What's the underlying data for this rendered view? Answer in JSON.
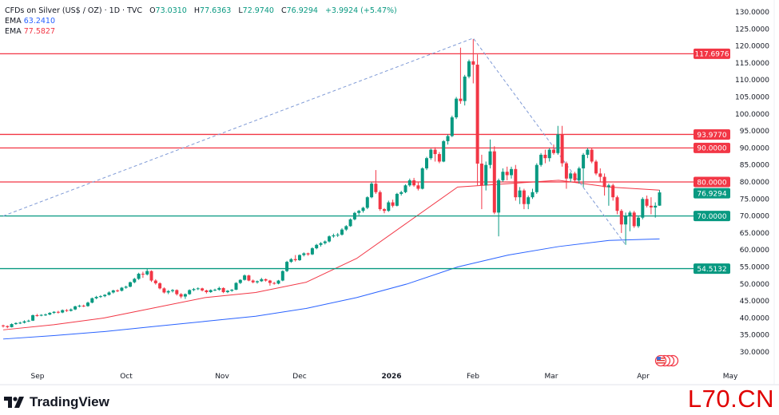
{
  "legend": {
    "symbol": "CFDs on Silver (US$ / OZ) · 1D · TVC",
    "o_label": "O",
    "o": "73.0310",
    "h_label": "H",
    "h": "77.6363",
    "l_label": "L",
    "l": "72.9740",
    "c_label": "C",
    "c": "76.9294",
    "change": "+3.9924 (+5.47%)",
    "ema_label_1": "EMA",
    "ema_value_1": "63.2410",
    "ema_label_2": "EMA",
    "ema_value_2": "77.5827"
  },
  "brand": {
    "name": "TradingView"
  },
  "watermark": "L70.CN",
  "colors": {
    "up": "#089981",
    "down": "#f23645",
    "ema_long": "#2962ff",
    "ema_short": "#f23645",
    "resistance": "#f23645",
    "support": "#089981",
    "trendline": "#7f9ad6"
  },
  "chart_data": {
    "type": "candlestick",
    "ylim": [
      30,
      130
    ],
    "y_ticks": [
      "130.0000",
      "125.0000",
      "120.0000",
      "115.0000",
      "110.0000",
      "105.0000",
      "100.0000",
      "95.0000",
      "90.0000",
      "85.0000",
      "80.0000",
      "75.0000",
      "70.0000",
      "65.0000",
      "60.0000",
      "55.0000",
      "50.0000",
      "45.0000",
      "40.0000",
      "35.0000",
      "30.0000"
    ],
    "x_ticks": [
      "Sep",
      "Oct",
      "Nov",
      "Dec",
      "2026",
      "Feb",
      "Mar",
      "Apr",
      "May"
    ],
    "grid": false,
    "last_price": "76.9294",
    "levels": [
      {
        "value": 117.6976,
        "label": "117.6976",
        "kind": "resistance"
      },
      {
        "value": 93.977,
        "label": "93.9770",
        "kind": "resistance"
      },
      {
        "value": 90.0,
        "label": "90.0000",
        "kind": "resistance"
      },
      {
        "value": 80.0,
        "label": "80.0000",
        "kind": "resistance"
      },
      {
        "value": 70.0,
        "label": "70.0000",
        "kind": "support"
      },
      {
        "value": 54.5132,
        "label": "54.5132",
        "kind": "support"
      }
    ],
    "trendline": [
      {
        "candle": 0,
        "price": 70.0
      },
      {
        "candle": 111,
        "price": 122.3
      },
      {
        "candle": 147,
        "price": 61.5
      }
    ],
    "ema_long": [
      33.8,
      34.8,
      36.0,
      37.5,
      39.0,
      40.5,
      42.8,
      46.0,
      50.0,
      55.0,
      58.5,
      61.0,
      62.8,
      63.241
    ],
    "ema_short": [
      36.5,
      38.0,
      40.0,
      43.0,
      46.0,
      47.5,
      50.5,
      57.5,
      68.0,
      78.5,
      79.5,
      80.5,
      78.5,
      77.5827
    ],
    "candles": [
      [
        37.8,
        38.0,
        37.2,
        37.6
      ],
      [
        37.6,
        37.8,
        37.0,
        37.3
      ],
      [
        37.3,
        38.4,
        37.2,
        38.2
      ],
      [
        38.2,
        38.7,
        38.0,
        38.5
      ],
      [
        38.5,
        38.9,
        38.2,
        38.6
      ],
      [
        38.6,
        39.3,
        38.4,
        39.0
      ],
      [
        39.0,
        39.5,
        38.8,
        39.2
      ],
      [
        39.2,
        41.0,
        39.1,
        40.8
      ],
      [
        40.8,
        41.2,
        40.4,
        40.7
      ],
      [
        40.7,
        41.1,
        40.5,
        40.9
      ],
      [
        40.9,
        41.3,
        40.6,
        41.0
      ],
      [
        41.0,
        41.7,
        40.8,
        41.5
      ],
      [
        41.5,
        42.0,
        41.2,
        41.8
      ],
      [
        41.8,
        42.1,
        41.3,
        41.6
      ],
      [
        41.6,
        42.5,
        41.4,
        42.3
      ],
      [
        42.3,
        42.6,
        41.8,
        42.1
      ],
      [
        42.1,
        42.8,
        41.9,
        42.5
      ],
      [
        42.5,
        43.6,
        42.3,
        43.4
      ],
      [
        43.4,
        43.9,
        43.1,
        43.6
      ],
      [
        43.6,
        43.9,
        43.2,
        43.5
      ],
      [
        43.5,
        44.8,
        43.3,
        44.5
      ],
      [
        44.5,
        46.0,
        44.3,
        45.8
      ],
      [
        45.8,
        46.5,
        45.5,
        46.2
      ],
      [
        46.2,
        46.7,
        45.9,
        46.4
      ],
      [
        46.4,
        47.0,
        46.1,
        46.8
      ],
      [
        46.8,
        47.8,
        46.6,
        47.5
      ],
      [
        47.5,
        48.3,
        47.2,
        48.1
      ],
      [
        48.1,
        48.4,
        47.6,
        48.0
      ],
      [
        48.0,
        49.1,
        47.8,
        48.9
      ],
      [
        48.9,
        49.5,
        48.6,
        49.2
      ],
      [
        49.2,
        50.7,
        49.0,
        50.5
      ],
      [
        50.5,
        51.8,
        50.2,
        51.5
      ],
      [
        51.5,
        53.3,
        51.2,
        53.0
      ],
      [
        53.0,
        53.6,
        51.8,
        52.8
      ],
      [
        52.8,
        54.5,
        52.5,
        53.8
      ],
      [
        53.8,
        54.0,
        50.6,
        51.0
      ],
      [
        51.0,
        51.4,
        49.8,
        50.2
      ],
      [
        50.2,
        50.5,
        48.4,
        48.7
      ],
      [
        48.7,
        49.0,
        47.2,
        47.5
      ],
      [
        47.5,
        48.2,
        47.0,
        47.9
      ],
      [
        47.9,
        48.5,
        47.5,
        48.2
      ],
      [
        48.2,
        48.4,
        46.6,
        47.0
      ],
      [
        47.0,
        47.3,
        45.8,
        46.3
      ],
      [
        46.3,
        47.2,
        45.6,
        47.0
      ],
      [
        47.0,
        48.4,
        46.8,
        48.2
      ],
      [
        48.2,
        48.8,
        47.9,
        48.5
      ],
      [
        48.5,
        49.0,
        48.2,
        48.7
      ],
      [
        48.7,
        48.9,
        47.8,
        48.1
      ],
      [
        48.1,
        48.3,
        47.2,
        47.6
      ],
      [
        47.6,
        48.4,
        47.4,
        48.2
      ],
      [
        48.2,
        48.6,
        47.9,
        48.3
      ],
      [
        48.3,
        49.2,
        48.0,
        48.8
      ],
      [
        48.8,
        49.0,
        47.3,
        47.6
      ],
      [
        47.6,
        48.2,
        47.3,
        48.0
      ],
      [
        48.0,
        48.5,
        47.7,
        48.3
      ],
      [
        48.3,
        50.5,
        48.2,
        50.3
      ],
      [
        50.3,
        51.4,
        50.0,
        51.2
      ],
      [
        51.2,
        52.8,
        51.0,
        52.5
      ],
      [
        52.5,
        52.7,
        50.8,
        51.0
      ],
      [
        51.0,
        51.3,
        50.2,
        50.5
      ],
      [
        50.5,
        51.0,
        50.1,
        50.8
      ],
      [
        50.8,
        51.8,
        50.6,
        51.4
      ],
      [
        51.4,
        51.6,
        50.7,
        51.0
      ],
      [
        51.0,
        51.2,
        49.5,
        50.3
      ],
      [
        50.3,
        50.6,
        49.8,
        50.1
      ],
      [
        50.1,
        51.2,
        49.9,
        51.0
      ],
      [
        51.0,
        54.0,
        50.8,
        53.8
      ],
      [
        53.8,
        56.8,
        53.5,
        56.5
      ],
      [
        56.5,
        57.6,
        56.2,
        57.3
      ],
      [
        57.3,
        58.5,
        56.6,
        57.0
      ],
      [
        57.0,
        58.7,
        56.8,
        58.5
      ],
      [
        58.5,
        59.3,
        58.1,
        59.0
      ],
      [
        59.0,
        59.2,
        58.3,
        58.7
      ],
      [
        58.7,
        60.8,
        58.5,
        60.5
      ],
      [
        60.5,
        61.8,
        60.2,
        61.5
      ],
      [
        61.5,
        62.3,
        61.0,
        62.0
      ],
      [
        62.0,
        62.8,
        61.6,
        62.5
      ],
      [
        62.5,
        64.3,
        62.2,
        64.0
      ],
      [
        64.0,
        64.8,
        63.6,
        64.3
      ],
      [
        64.3,
        65.0,
        63.8,
        64.5
      ],
      [
        64.5,
        66.4,
        64.2,
        66.0
      ],
      [
        66.0,
        67.3,
        65.6,
        67.0
      ],
      [
        67.0,
        69.3,
        66.8,
        69.0
      ],
      [
        69.0,
        71.2,
        68.7,
        70.9
      ],
      [
        70.9,
        71.8,
        70.2,
        71.5
      ],
      [
        71.5,
        72.7,
        71.0,
        72.4
      ],
      [
        72.4,
        75.8,
        72.0,
        75.5
      ],
      [
        75.5,
        80.0,
        75.2,
        79.5
      ],
      [
        79.5,
        83.5,
        76.5,
        77.0
      ],
      [
        77.0,
        77.5,
        71.5,
        72.0
      ],
      [
        72.0,
        72.3,
        70.8,
        71.5
      ],
      [
        71.5,
        74.5,
        71.2,
        74.0
      ],
      [
        74.0,
        74.8,
        72.5,
        73.0
      ],
      [
        73.0,
        76.8,
        72.8,
        76.5
      ],
      [
        76.5,
        77.4,
        76.0,
        77.0
      ],
      [
        77.0,
        79.3,
        76.7,
        79.0
      ],
      [
        79.0,
        81.0,
        78.6,
        80.5
      ],
      [
        80.5,
        81.2,
        78.6,
        79.0
      ],
      [
        79.0,
        80.0,
        77.5,
        78.0
      ],
      [
        78.0,
        84.3,
        77.8,
        84.0
      ],
      [
        84.0,
        87.4,
        83.5,
        87.0
      ],
      [
        87.0,
        89.8,
        86.5,
        89.5
      ],
      [
        89.5,
        90.2,
        86.0,
        88.2
      ],
      [
        88.2,
        88.8,
        85.5,
        86.0
      ],
      [
        86.0,
        92.3,
        85.8,
        92.0
      ],
      [
        92.0,
        94.0,
        91.0,
        93.5
      ],
      [
        93.5,
        99.5,
        93.2,
        99.0
      ],
      [
        99.0,
        105.0,
        98.5,
        104.5
      ],
      [
        104.5,
        119.5,
        103.0,
        103.8
      ],
      [
        103.8,
        111.5,
        102.5,
        111.0
      ],
      [
        111.0,
        116.0,
        110.5,
        115.5
      ],
      [
        115.5,
        122.0,
        109.0,
        114.5
      ],
      [
        114.5,
        117.5,
        79.0,
        85.4
      ],
      [
        85.4,
        88.0,
        72.0,
        79.0
      ],
      [
        79.0,
        86.0,
        77.5,
        85.0
      ],
      [
        85.0,
        92.5,
        84.0,
        89.0
      ],
      [
        89.0,
        90.5,
        70.5,
        71.0
      ],
      [
        71.0,
        81.0,
        64.0,
        80.5
      ],
      [
        80.5,
        84.0,
        80.0,
        83.0
      ],
      [
        83.0,
        84.5,
        80.5,
        82.0
      ],
      [
        82.0,
        84.5,
        81.0,
        83.8
      ],
      [
        83.8,
        85.0,
        74.5,
        75.5
      ],
      [
        75.5,
        78.5,
        73.5,
        77.5
      ],
      [
        77.5,
        78.0,
        72.0,
        73.5
      ],
      [
        73.5,
        76.0,
        72.0,
        75.5
      ],
      [
        75.5,
        78.0,
        75.0,
        77.0
      ],
      [
        77.0,
        85.5,
        76.5,
        85.0
      ],
      [
        85.0,
        88.5,
        84.5,
        88.0
      ],
      [
        88.0,
        89.5,
        85.5,
        87.0
      ],
      [
        87.0,
        90.0,
        86.0,
        89.5
      ],
      [
        89.5,
        91.0,
        88.0,
        88.5
      ],
      [
        88.5,
        96.5,
        88.0,
        94.0
      ],
      [
        94.0,
        96.5,
        84.5,
        85.5
      ],
      [
        85.5,
        86.0,
        78.0,
        81.0
      ],
      [
        81.0,
        83.0,
        80.0,
        82.5
      ],
      [
        82.5,
        83.0,
        80.0,
        80.5
      ],
      [
        80.5,
        84.5,
        79.5,
        84.0
      ],
      [
        84.0,
        88.5,
        78.5,
        88.0
      ],
      [
        88.0,
        90.0,
        87.0,
        89.5
      ],
      [
        89.5,
        90.0,
        85.5,
        86.0
      ],
      [
        86.0,
        86.5,
        82.0,
        82.5
      ],
      [
        82.5,
        84.0,
        80.0,
        81.5
      ],
      [
        81.5,
        82.5,
        76.0,
        78.5
      ],
      [
        78.5,
        79.5,
        73.0,
        79.0
      ],
      [
        79.0,
        79.5,
        74.5,
        75.5
      ],
      [
        75.5,
        76.0,
        70.5,
        71.5
      ],
      [
        71.5,
        72.0,
        65.0,
        67.5
      ],
      [
        67.5,
        71.0,
        61.5,
        70.0
      ],
      [
        70.0,
        71.5,
        65.5,
        71.0
      ],
      [
        71.0,
        71.5,
        66.5,
        67.0
      ],
      [
        67.0,
        70.0,
        66.5,
        69.5
      ],
      [
        69.5,
        75.5,
        69.0,
        75.0
      ],
      [
        75.0,
        76.0,
        72.5,
        73.0
      ],
      [
        73.0,
        75.5,
        70.5,
        72.5
      ],
      [
        72.5,
        74.0,
        69.5,
        73.0
      ],
      [
        73.031,
        77.6363,
        72.974,
        76.9294
      ]
    ]
  }
}
